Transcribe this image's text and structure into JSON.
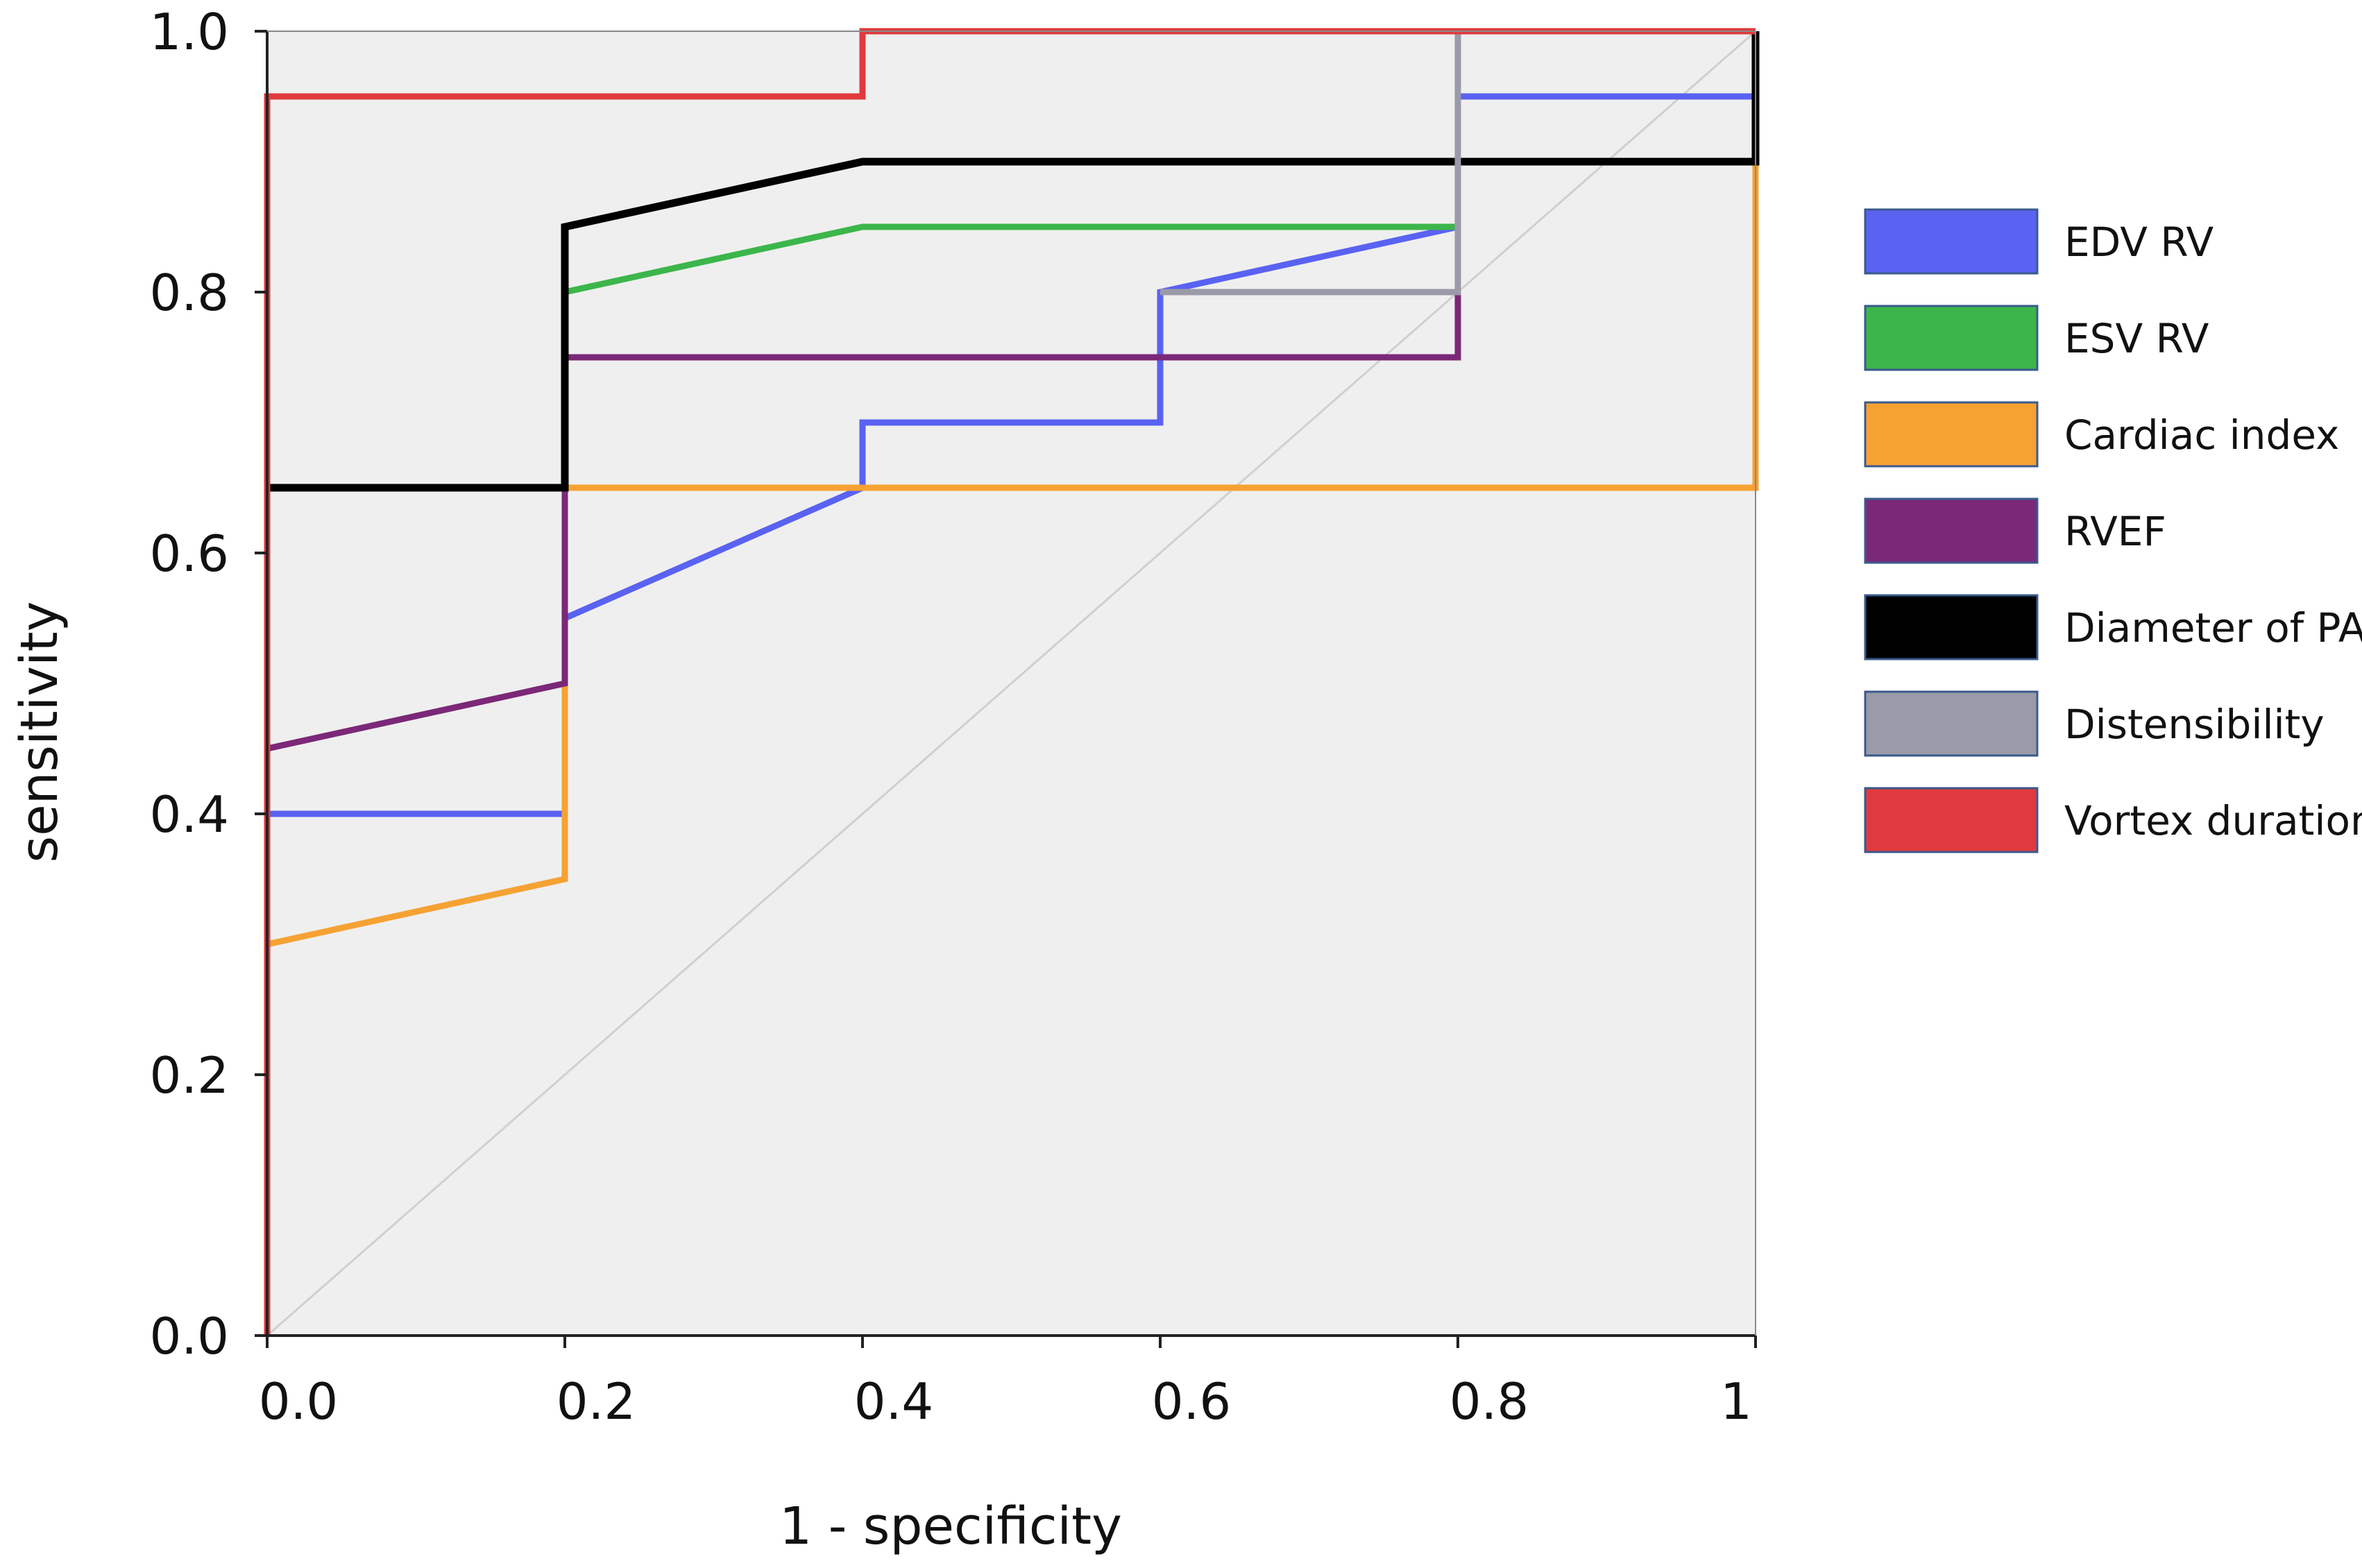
{
  "chart_data": {
    "type": "line",
    "title": "",
    "xlabel": "1 - specificity",
    "ylabel": "sensitivity",
    "xlim": [
      0,
      1
    ],
    "ylim": [
      0,
      1
    ],
    "x_ticks": [
      {
        "value": 0,
        "label": "0.0"
      },
      {
        "value": 0.2,
        "label": "0.2"
      },
      {
        "value": 0.4,
        "label": "0.4"
      },
      {
        "value": 0.6,
        "label": "0.6"
      },
      {
        "value": 0.8,
        "label": "0.8"
      },
      {
        "value": 1,
        "label": "1"
      }
    ],
    "y_ticks": [
      {
        "value": 0,
        "label": "0.0"
      },
      {
        "value": 0.2,
        "label": "0.2"
      },
      {
        "value": 0.4,
        "label": "0.4"
      },
      {
        "value": 0.6,
        "label": "0.6"
      },
      {
        "value": 0.8,
        "label": "0.8"
      },
      {
        "value": 1,
        "label": "1.0"
      }
    ],
    "reference_line": {
      "x": [
        0,
        1
      ],
      "y": [
        0,
        1
      ],
      "color": "#d0d0d0"
    },
    "plot_background": "#efefef",
    "legend_position": "right",
    "series": [
      {
        "name": "EDV RV",
        "color": "#5a62f2",
        "x": [
          0,
          0.2,
          0.2,
          0.4,
          0.4,
          0.6,
          0.6,
          0.8,
          0.8,
          1
        ],
        "y": [
          0.4,
          0.4,
          0.55,
          0.65,
          0.7,
          0.7,
          0.8,
          0.85,
          0.95,
          0.95
        ]
      },
      {
        "name": "ESV RV",
        "color": "#3cb64a",
        "x": [
          0.2,
          0.2,
          0.4,
          0.8
        ],
        "y": [
          0.65,
          0.8,
          0.85,
          0.85
        ]
      },
      {
        "name": "Cardiac index",
        "color": "#f5a233",
        "x": [
          0,
          0.2,
          0.2,
          0.4,
          1,
          1
        ],
        "y": [
          0.3,
          0.35,
          0.65,
          0.65,
          0.65,
          0.9
        ]
      },
      {
        "name": "RVEF",
        "color": "#7b2878",
        "x": [
          0,
          0.2,
          0.2,
          0.8,
          0.8
        ],
        "y": [
          0.45,
          0.5,
          0.75,
          0.75,
          0.8
        ]
      },
      {
        "name": "Diameter of PA",
        "color": "#000000",
        "x": [
          0,
          0.2,
          0.2,
          0.4,
          1,
          1
        ],
        "y": [
          0.65,
          0.65,
          0.85,
          0.9,
          0.9,
          1.0
        ]
      },
      {
        "name": "Distensibility",
        "color": "#9a9aa8",
        "x": [
          0.6,
          0.8,
          0.8
        ],
        "y": [
          0.8,
          0.8,
          1.0
        ]
      },
      {
        "name": "Vortex duration",
        "color": "#e03a3e",
        "x": [
          0,
          0,
          0.4,
          0.4,
          1
        ],
        "y": [
          0,
          0.95,
          0.95,
          1.0,
          1.0
        ]
      }
    ]
  }
}
